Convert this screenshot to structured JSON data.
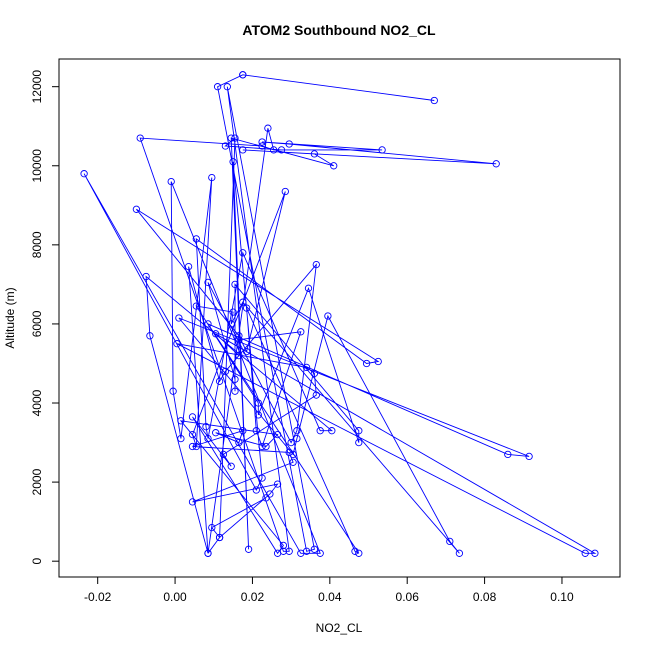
{
  "chart_data": {
    "type": "line",
    "title": "ATOM2 Southbound NO2_CL",
    "xlabel": "NO2_CL",
    "ylabel": "Altitude (m)",
    "xlim": [
      -0.03,
      0.115
    ],
    "ylim": [
      -400,
      12700
    ],
    "x_ticks": [
      -0.02,
      0.0,
      0.02,
      0.04,
      0.06,
      0.08,
      0.1
    ],
    "x_tick_labels": [
      "-0.02",
      "0.00",
      "0.02",
      "0.04",
      "0.06",
      "0.08",
      "0.10"
    ],
    "y_ticks": [
      0,
      2000,
      4000,
      6000,
      8000,
      10000,
      12000
    ],
    "y_tick_labels": [
      "0",
      "2000",
      "4000",
      "6000",
      "8000",
      "10000",
      "12000"
    ],
    "grid": false,
    "series": [
      {
        "color": "#0000ff",
        "markers": "open-circle",
        "points": [
          [
            0.0175,
            12300
          ],
          [
            0.067,
            11650
          ],
          [
            0.0175,
            12300
          ],
          [
            0.011,
            12000
          ],
          [
            0.034,
            250
          ],
          [
            0.036,
            300
          ],
          [
            0.0135,
            12000
          ],
          [
            0.0295,
            250
          ],
          [
            0.028,
            250
          ],
          [
            -0.009,
            10700
          ],
          [
            0.0225,
            10500
          ],
          [
            0.0255,
            10400
          ],
          [
            0.024,
            10950
          ],
          [
            0.0085,
            200
          ],
          [
            0.0115,
            600
          ],
          [
            0.0155,
            10700
          ],
          [
            0.013,
            10500
          ],
          [
            0.0275,
            10400
          ],
          [
            0.0535,
            10400
          ],
          [
            0.0225,
            10600
          ],
          [
            0.0295,
            10550
          ],
          [
            0.083,
            10050
          ],
          [
            0.0175,
            10400
          ],
          [
            0.036,
            10300
          ],
          [
            0.041,
            10000
          ],
          [
            0.0145,
            10700
          ],
          [
            0.019,
            300
          ],
          [
            0.015,
            10100
          ],
          [
            0.0225,
            2100
          ],
          [
            0.021,
            1800
          ],
          [
            -0.0235,
            9800
          ],
          [
            0.0325,
            200
          ],
          [
            0.0375,
            200
          ],
          [
            -0.001,
            9600
          ],
          [
            -0.0005,
            4300
          ],
          [
            0.0015,
            3100
          ],
          [
            0.0095,
            9700
          ],
          [
            0.0055,
            2900
          ],
          [
            0.0045,
            3200
          ],
          [
            0.0285,
            9350
          ],
          [
            0.0185,
            5300
          ],
          [
            0.0165,
            5700
          ],
          [
            -0.01,
            8900
          ],
          [
            0.0525,
            5050
          ],
          [
            0.0495,
            5000
          ],
          [
            0.0055,
            8150
          ],
          [
            0.008,
            3400
          ],
          [
            0.0085,
            3100
          ],
          [
            0.0175,
            7800
          ],
          [
            0.0375,
            3300
          ],
          [
            0.0405,
            3300
          ],
          [
            -0.0075,
            7200
          ],
          [
            -0.0065,
            5700
          ],
          [
            0.0085,
            200
          ],
          [
            0.0035,
            7450
          ],
          [
            0.0115,
            4550
          ],
          [
            0.013,
            4800
          ],
          [
            0.0365,
            7500
          ],
          [
            0.0315,
            3300
          ],
          [
            0.03,
            3000
          ],
          [
            0.0085,
            7050
          ],
          [
            0.0155,
            4600
          ],
          [
            0.0155,
            4300
          ],
          [
            0.0155,
            7000
          ],
          [
            0.0475,
            3300
          ],
          [
            0.0475,
            3000
          ],
          [
            0.0345,
            6900
          ],
          [
            0.0215,
            3700
          ],
          [
            0.0215,
            4000
          ],
          [
            0.0055,
            6450
          ],
          [
            0.015,
            6300
          ],
          [
            0.0145,
            6000
          ],
          [
            0.0175,
            6550
          ],
          [
            0.0735,
            200
          ],
          [
            0.071,
            500
          ],
          [
            0.0395,
            6200
          ],
          [
            0.0315,
            3100
          ],
          [
            0.0305,
            2700
          ],
          [
            0.001,
            6150
          ],
          [
            0.0915,
            2650
          ],
          [
            0.086,
            2700
          ],
          [
            0.0085,
            6000
          ],
          [
            0.0475,
            200
          ],
          [
            0.0465,
            250
          ],
          [
            0.0185,
            6400
          ],
          [
            0.021,
            3300
          ],
          [
            0.0225,
            2900
          ],
          [
            0.0325,
            5800
          ],
          [
            0.0165,
            5600
          ],
          [
            0.0165,
            5200
          ],
          [
            0.0105,
            5750
          ],
          [
            0.1085,
            200
          ],
          [
            0.106,
            200
          ],
          [
            0.0005,
            5500
          ],
          [
            0.034,
            4900
          ],
          [
            0.036,
            4750
          ],
          [
            0.0365,
            4200
          ],
          [
            0.0125,
            2700
          ],
          [
            0.0145,
            2400
          ],
          [
            0.0045,
            3650
          ],
          [
            0.0265,
            200
          ],
          [
            0.028,
            400
          ],
          [
            0.0015,
            3550
          ],
          [
            0.0265,
            3200
          ],
          [
            0.0235,
            2900
          ],
          [
            0.0105,
            3250
          ],
          [
            0.0165,
            3000
          ],
          [
            0.0175,
            3300
          ],
          [
            0.0045,
            2900
          ],
          [
            0.0295,
            2750
          ],
          [
            0.0305,
            2500
          ],
          [
            0.0045,
            1500
          ],
          [
            0.0265,
            1950
          ],
          [
            0.0245,
            1700
          ],
          [
            0.0115,
            600
          ],
          [
            0.0095,
            850
          ],
          [
            0.0235,
            1600
          ]
        ]
      }
    ]
  }
}
